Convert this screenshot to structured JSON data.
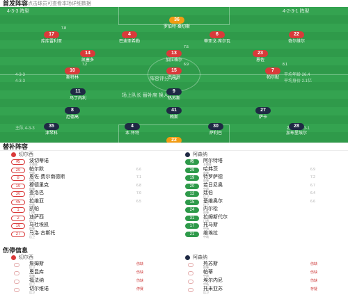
{
  "header": {
    "title": "首发阵容",
    "hint": "点击球员可查看本场详细数据"
  },
  "pitch": {
    "home_label": "4-3-3 阵型",
    "away_label": "4-2-3-1 阵型",
    "home_coach_label": "主帅",
    "away_coach_label": "主帅",
    "center_text": "阵容评分 7.5",
    "mid_left": "切尔西 4-3-3",
    "mid_right": "阿森纳 4-2-3-1",
    "side_left_1": "4-3-3",
    "side_left_2": "4-3-3",
    "side_right_1": "平均年龄 26.4",
    "side_right_2": "平均身价 2.1亿",
    "lower_text": "场上队长 替补席 换人",
    "bottom_left": "主队 4-3-3",
    "bottom_right": "客队 4-2-3-1"
  },
  "subs": {
    "title": "替补阵容",
    "home_team": "切尔西",
    "away_team": "阿森纳",
    "home": [
      {
        "num": "教",
        "name": "波切蒂诺",
        "pos": "主教练"
      },
      {
        "num": "20",
        "name": "帕尔默",
        "pos": "中场",
        "rate": "6.6"
      },
      {
        "num": "8",
        "name": "恩佐·费尔南德斯",
        "pos": "中场",
        "rate": "7.1"
      },
      {
        "num": "10",
        "name": "穆德里克",
        "pos": "前锋",
        "rate": "6.8"
      },
      {
        "num": "30",
        "name": "查洛巴",
        "pos": "后卫",
        "rate": "7.0"
      },
      {
        "num": "45",
        "name": "拉维亚",
        "pos": "中场",
        "rate": "6.5"
      },
      {
        "num": "1",
        "name": "凯帕",
        "pos": "门将"
      },
      {
        "num": "2",
        "name": "迪萨西",
        "pos": "后卫"
      },
      {
        "num": "16",
        "name": "马杜埃凯",
        "pos": "前锋"
      },
      {
        "num": "27",
        "name": "马洛·古斯托",
        "pos": "后卫"
      }
    ],
    "away": [
      {
        "num": "教",
        "name": "阿尔特塔",
        "pos": "主教练"
      },
      {
        "num": "29",
        "name": "哈弗茨",
        "pos": "前锋",
        "rate": "6.9"
      },
      {
        "num": "19",
        "name": "特罗萨德",
        "pos": "前锋",
        "rate": "7.2"
      },
      {
        "num": "20",
        "name": "若日尼奥",
        "pos": "中场",
        "rate": "6.7"
      },
      {
        "num": "12",
        "name": "廷伯",
        "pos": "后卫",
        "rate": "6.4"
      },
      {
        "num": "15",
        "name": "基维奥尔",
        "pos": "后卫",
        "rate": "6.6"
      },
      {
        "num": "24",
        "name": "内尔松",
        "pos": "前锋"
      },
      {
        "num": "31",
        "name": "拉姆斯代尔",
        "pos": "门将"
      },
      {
        "num": "17",
        "name": "托马斯",
        "pos": "中场"
      },
      {
        "num": "21",
        "name": "维埃拉",
        "pos": "中场"
      }
    ]
  },
  "injuries": {
    "title": "伤停信息",
    "home": [
      {
        "name": "詹姆斯",
        "pos": "后卫",
        "tag": "伤缺"
      },
      {
        "name": "恩昆库",
        "pos": "前锋",
        "tag": "伤缺"
      },
      {
        "name": "福法纳",
        "pos": "后卫",
        "tag": "伤缺"
      },
      {
        "name": "切尔维诺",
        "pos": "后卫",
        "tag": "停赛"
      }
    ],
    "away": [
      {
        "name": "热苏斯",
        "pos": "前锋",
        "tag": "伤缺"
      },
      {
        "name": "帕蒂",
        "pos": "中场",
        "tag": "伤缺"
      },
      {
        "name": "埃尔内尼",
        "pos": "中场",
        "tag": "伤缺"
      },
      {
        "name": "托米亚苏",
        "pos": "后卫",
        "tag": "存疑"
      }
    ]
  }
}
